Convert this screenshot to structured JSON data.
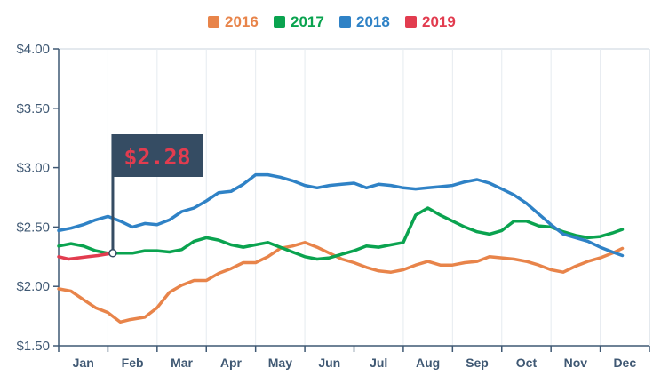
{
  "chart_data": {
    "type": "line",
    "title": "",
    "xlabel": "",
    "ylabel": "",
    "x_domain": [
      0,
      12
    ],
    "ylim": [
      1.5,
      4.0
    ],
    "yticks": [
      1.5,
      2.0,
      2.5,
      3.0,
      3.5,
      4.0
    ],
    "ytick_labels": [
      "$1.50",
      "$2.00",
      "$2.50",
      "$3.00",
      "$3.50",
      "$4.00"
    ],
    "categories": [
      "Jan",
      "Feb",
      "Mar",
      "Apr",
      "May",
      "Jun",
      "Jul",
      "Aug",
      "Sep",
      "Oct",
      "Nov",
      "Dec"
    ],
    "grid": "vertical",
    "legend_position": "top-center",
    "series": [
      {
        "name": "2016",
        "color": "#e8844a",
        "points": [
          [
            0,
            1.98
          ],
          [
            0.25,
            1.96
          ],
          [
            0.5,
            1.89
          ],
          [
            0.75,
            1.82
          ],
          [
            1.0,
            1.78
          ],
          [
            1.25,
            1.7
          ],
          [
            1.45,
            1.72
          ],
          [
            1.75,
            1.74
          ],
          [
            2.0,
            1.82
          ],
          [
            2.25,
            1.95
          ],
          [
            2.5,
            2.01
          ],
          [
            2.75,
            2.05
          ],
          [
            3.0,
            2.05
          ],
          [
            3.25,
            2.11
          ],
          [
            3.5,
            2.15
          ],
          [
            3.75,
            2.2
          ],
          [
            4.0,
            2.2
          ],
          [
            4.25,
            2.25
          ],
          [
            4.5,
            2.32
          ],
          [
            4.75,
            2.34
          ],
          [
            5.0,
            2.37
          ],
          [
            5.25,
            2.33
          ],
          [
            5.5,
            2.28
          ],
          [
            5.75,
            2.23
          ],
          [
            6.0,
            2.2
          ],
          [
            6.25,
            2.16
          ],
          [
            6.5,
            2.13
          ],
          [
            6.75,
            2.12
          ],
          [
            7.0,
            2.14
          ],
          [
            7.25,
            2.18
          ],
          [
            7.5,
            2.21
          ],
          [
            7.75,
            2.18
          ],
          [
            8.0,
            2.18
          ],
          [
            8.25,
            2.2
          ],
          [
            8.5,
            2.21
          ],
          [
            8.75,
            2.25
          ],
          [
            9.0,
            2.24
          ],
          [
            9.25,
            2.23
          ],
          [
            9.5,
            2.21
          ],
          [
            9.75,
            2.18
          ],
          [
            10.0,
            2.14
          ],
          [
            10.25,
            2.12
          ],
          [
            10.5,
            2.17
          ],
          [
            10.75,
            2.21
          ],
          [
            11.0,
            2.24
          ],
          [
            11.25,
            2.28
          ],
          [
            11.45,
            2.32
          ]
        ]
      },
      {
        "name": "2017",
        "color": "#0aa34f",
        "points": [
          [
            0,
            2.34
          ],
          [
            0.25,
            2.36
          ],
          [
            0.5,
            2.34
          ],
          [
            0.75,
            2.3
          ],
          [
            1.0,
            2.28
          ],
          [
            1.25,
            2.28
          ],
          [
            1.5,
            2.28
          ],
          [
            1.75,
            2.3
          ],
          [
            2.0,
            2.3
          ],
          [
            2.25,
            2.29
          ],
          [
            2.5,
            2.31
          ],
          [
            2.75,
            2.38
          ],
          [
            3.0,
            2.41
          ],
          [
            3.25,
            2.39
          ],
          [
            3.5,
            2.35
          ],
          [
            3.75,
            2.33
          ],
          [
            4.0,
            2.35
          ],
          [
            4.25,
            2.37
          ],
          [
            4.5,
            2.33
          ],
          [
            4.75,
            2.29
          ],
          [
            5.0,
            2.25
          ],
          [
            5.25,
            2.23
          ],
          [
            5.5,
            2.24
          ],
          [
            5.75,
            2.27
          ],
          [
            6.0,
            2.3
          ],
          [
            6.25,
            2.34
          ],
          [
            6.5,
            2.33
          ],
          [
            6.75,
            2.35
          ],
          [
            7.0,
            2.37
          ],
          [
            7.25,
            2.6
          ],
          [
            7.5,
            2.66
          ],
          [
            7.75,
            2.6
          ],
          [
            8.0,
            2.55
          ],
          [
            8.25,
            2.5
          ],
          [
            8.5,
            2.46
          ],
          [
            8.75,
            2.44
          ],
          [
            9.0,
            2.47
          ],
          [
            9.25,
            2.55
          ],
          [
            9.5,
            2.55
          ],
          [
            9.75,
            2.51
          ],
          [
            10.0,
            2.5
          ],
          [
            10.25,
            2.46
          ],
          [
            10.5,
            2.43
          ],
          [
            10.75,
            2.41
          ],
          [
            11.0,
            2.42
          ],
          [
            11.25,
            2.45
          ],
          [
            11.45,
            2.48
          ]
        ]
      },
      {
        "name": "2018",
        "color": "#2f82c6",
        "points": [
          [
            0,
            2.47
          ],
          [
            0.25,
            2.49
          ],
          [
            0.5,
            2.52
          ],
          [
            0.75,
            2.56
          ],
          [
            1.0,
            2.59
          ],
          [
            1.25,
            2.55
          ],
          [
            1.5,
            2.5
          ],
          [
            1.75,
            2.53
          ],
          [
            2.0,
            2.52
          ],
          [
            2.25,
            2.56
          ],
          [
            2.5,
            2.63
          ],
          [
            2.75,
            2.66
          ],
          [
            3.0,
            2.72
          ],
          [
            3.25,
            2.79
          ],
          [
            3.5,
            2.8
          ],
          [
            3.75,
            2.86
          ],
          [
            4.0,
            2.94
          ],
          [
            4.25,
            2.94
          ],
          [
            4.5,
            2.92
          ],
          [
            4.75,
            2.89
          ],
          [
            5.0,
            2.85
          ],
          [
            5.25,
            2.83
          ],
          [
            5.5,
            2.85
          ],
          [
            5.75,
            2.86
          ],
          [
            6.0,
            2.87
          ],
          [
            6.25,
            2.83
          ],
          [
            6.5,
            2.86
          ],
          [
            6.75,
            2.85
          ],
          [
            7.0,
            2.83
          ],
          [
            7.25,
            2.82
          ],
          [
            7.5,
            2.83
          ],
          [
            7.75,
            2.84
          ],
          [
            8.0,
            2.85
          ],
          [
            8.25,
            2.88
          ],
          [
            8.5,
            2.9
          ],
          [
            8.75,
            2.87
          ],
          [
            9.0,
            2.82
          ],
          [
            9.25,
            2.77
          ],
          [
            9.5,
            2.7
          ],
          [
            9.75,
            2.61
          ],
          [
            10.0,
            2.52
          ],
          [
            10.25,
            2.44
          ],
          [
            10.5,
            2.41
          ],
          [
            10.75,
            2.38
          ],
          [
            11.0,
            2.33
          ],
          [
            11.25,
            2.29
          ],
          [
            11.45,
            2.26
          ]
        ]
      },
      {
        "name": "2019",
        "color": "#e23c4f",
        "points": [
          [
            0,
            2.25
          ],
          [
            0.2,
            2.23
          ],
          [
            0.4,
            2.24
          ],
          [
            0.6,
            2.25
          ],
          [
            0.8,
            2.26
          ],
          [
            0.95,
            2.27
          ],
          [
            1.1,
            2.28
          ]
        ]
      }
    ],
    "annotation": {
      "label": "$2.28",
      "x": 1.1,
      "value": 2.28,
      "flag_color": "#354c63",
      "text_color": "#e23c4f"
    }
  }
}
